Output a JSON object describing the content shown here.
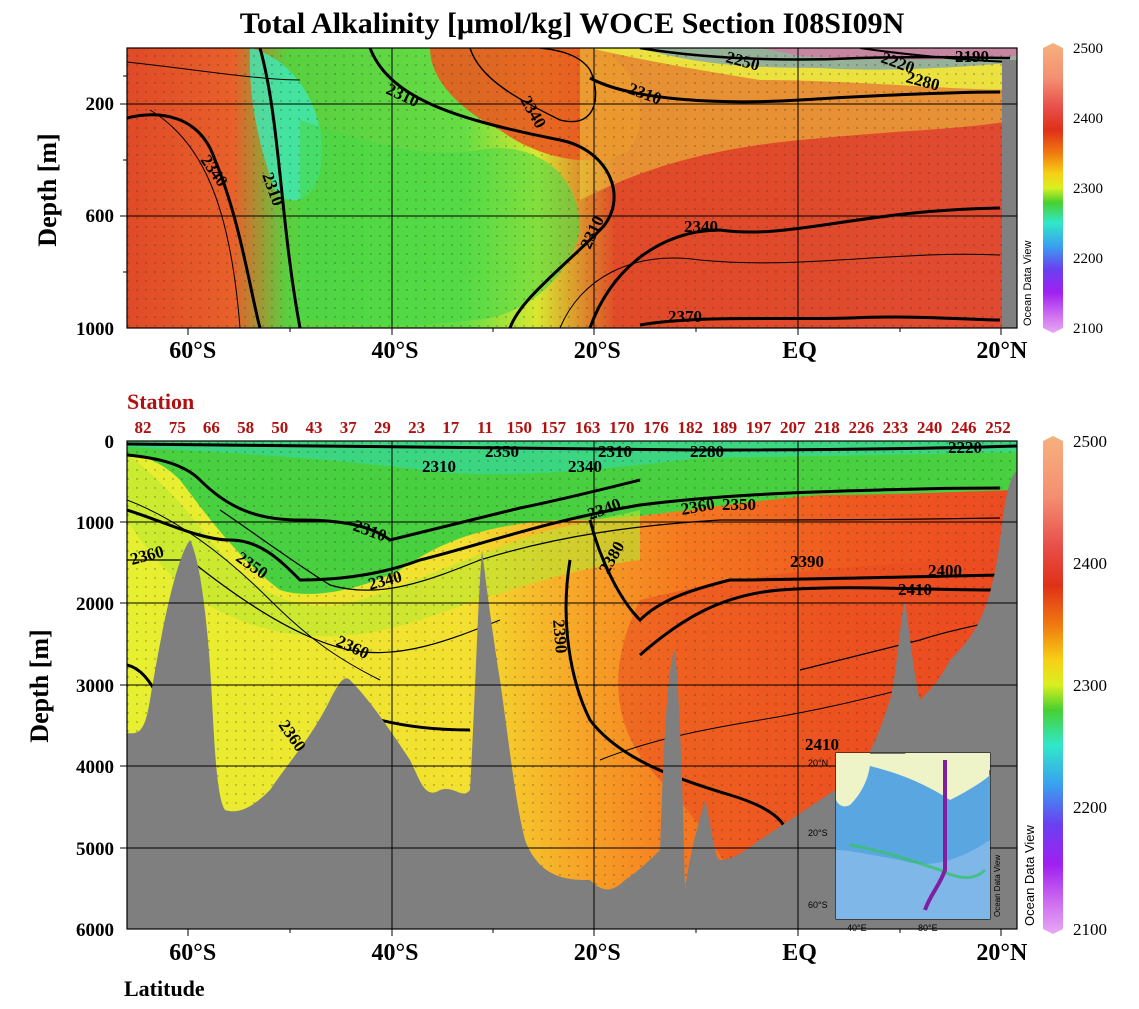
{
  "chart_data": [
    {
      "type": "heatmap",
      "title": "Total Alkalinity [μmol/kg]  WOCE Section I08SI09N",
      "panel": "upper",
      "ylabel": "Depth [m]",
      "xlabel": "",
      "ylim": [
        1000,
        0
      ],
      "y_ticks": [
        200,
        600,
        1000
      ],
      "x_ticks": [
        "60°S",
        "40°S",
        "20°S",
        "EQ",
        "20°N"
      ],
      "x_tick_values": [
        -60,
        -40,
        -20,
        0,
        20
      ],
      "xlim": [
        -66.5,
        21.5
      ],
      "contours": [
        {
          "level": 2310,
          "label": "2310"
        },
        {
          "level": 2340,
          "label": "2340"
        },
        {
          "level": 2370,
          "label": "2370"
        },
        {
          "level": 2280,
          "label": "2280"
        },
        {
          "level": 2250,
          "label": "2250"
        },
        {
          "level": 2220,
          "label": "2220"
        },
        {
          "level": 2190,
          "label": "2190"
        }
      ],
      "colorbar": {
        "min": 2100,
        "max": 2500,
        "ticks": [
          "2500",
          "2400",
          "2300",
          "2200",
          "2100"
        ]
      },
      "watermark": "Ocean Data View"
    },
    {
      "type": "heatmap",
      "panel": "lower",
      "ylabel": "Depth [m]",
      "xlabel": "Latitude",
      "ylim": [
        6000,
        0
      ],
      "y_ticks": [
        0,
        1000,
        2000,
        3000,
        4000,
        5000,
        6000
      ],
      "x_ticks": [
        "60°S",
        "40°S",
        "20°S",
        "EQ",
        "20°N"
      ],
      "x_tick_values": [
        -60,
        -40,
        -20,
        0,
        20
      ],
      "xlim": [
        -66.5,
        21.5
      ],
      "stations_label": "Station",
      "stations": [
        "82",
        "75",
        "66",
        "58",
        "50",
        "43",
        "37",
        "29",
        "23",
        "17",
        "11",
        "150",
        "157",
        "163",
        "170",
        "176",
        "182",
        "189",
        "197",
        "207",
        "218",
        "226",
        "233",
        "240",
        "246",
        "252"
      ],
      "contours": [
        {
          "level": 2310,
          "label": "2310"
        },
        {
          "level": 2340,
          "label": "2340"
        },
        {
          "level": 2350,
          "label": "2350"
        },
        {
          "level": 2360,
          "label": "2360"
        },
        {
          "level": 2380,
          "label": "2380"
        },
        {
          "level": 2390,
          "label": "2390"
        },
        {
          "level": 2400,
          "label": "2400"
        },
        {
          "level": 2410,
          "label": "2410"
        },
        {
          "level": 2280,
          "label": "2280"
        },
        {
          "level": 2220,
          "label": "2220"
        }
      ],
      "colorbar": {
        "min": 2100,
        "max": 2500,
        "ticks": [
          "2500",
          "2400",
          "2300",
          "2200",
          "2100"
        ]
      },
      "inset_map": {
        "lat_labels": [
          "20°N",
          "20°S",
          "60°S"
        ],
        "lon_labels": [
          "40°E",
          "80°E"
        ],
        "watermark": "Ocean Data View"
      },
      "watermark": "Ocean Data View"
    }
  ],
  "labels": {
    "title": "Total Alkalinity [μmol/kg]  WOCE Section I08SI09N",
    "ylabel_upper": "Depth [m]",
    "ylabel_lower": "Depth [m]",
    "xlabel": "Latitude",
    "station_heading": "Station",
    "odv": "Ocean Data View",
    "inset_odv": "Ocean Data View"
  }
}
